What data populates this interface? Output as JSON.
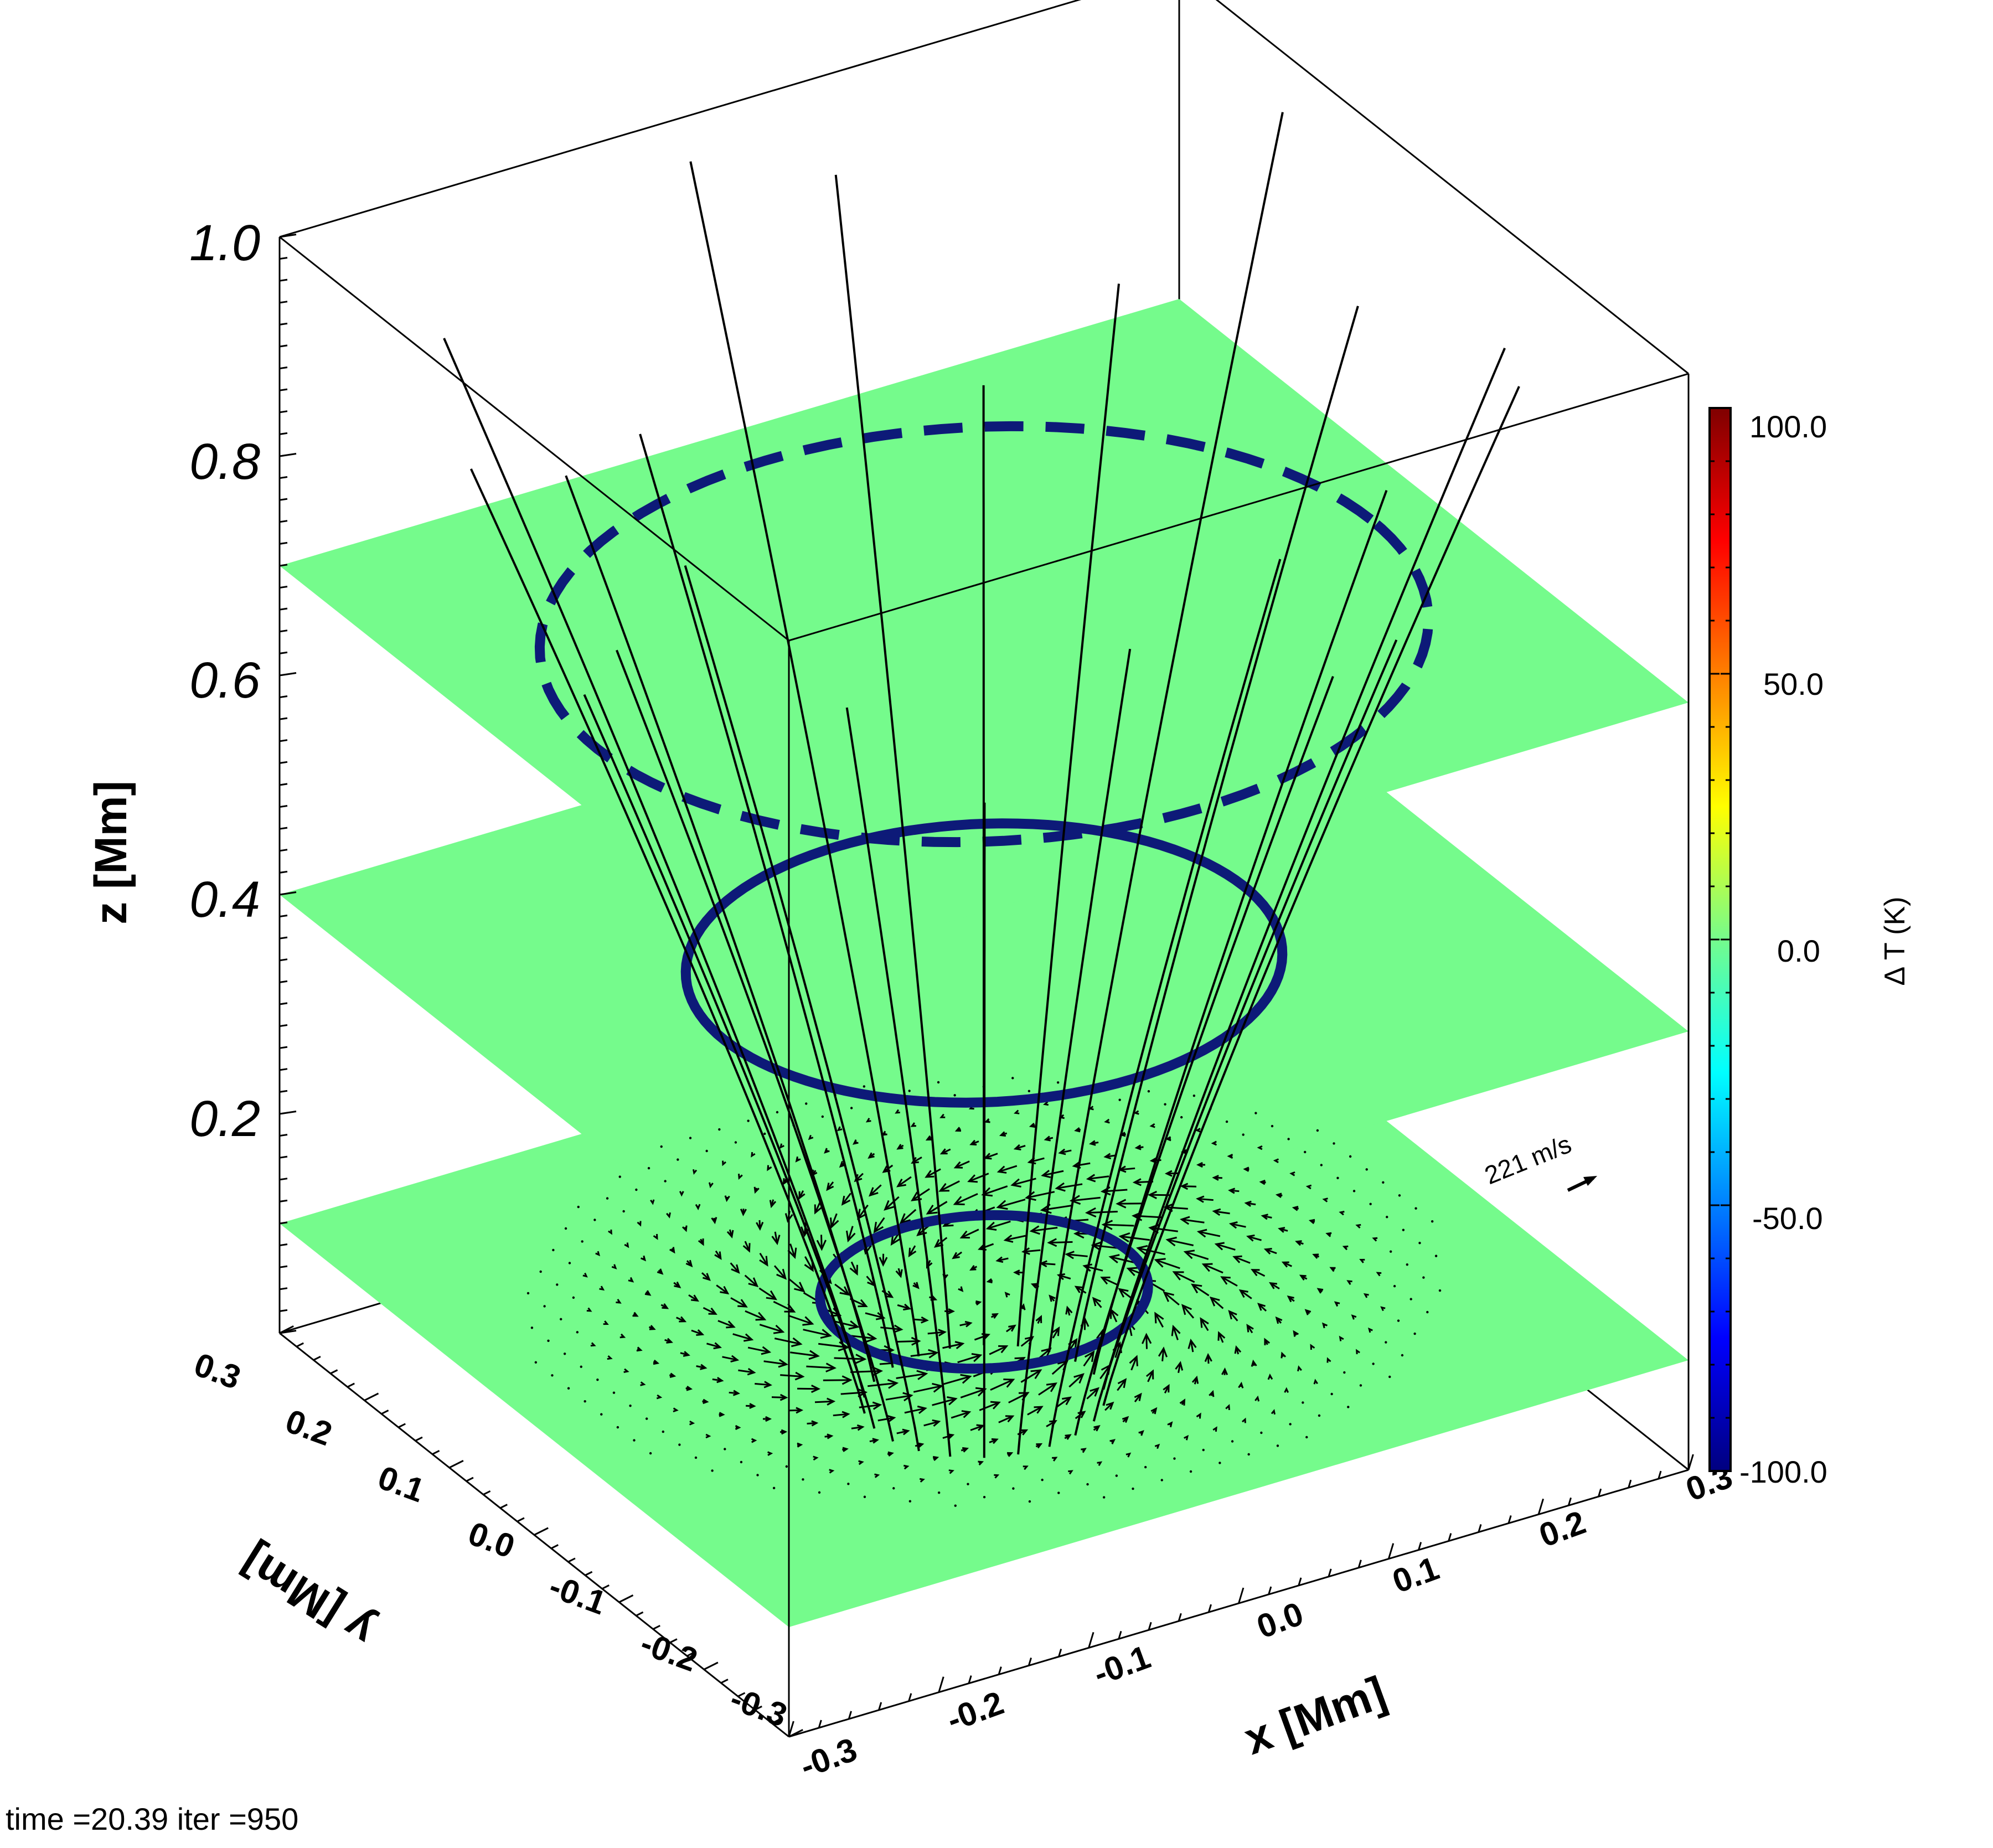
{
  "chart_data": {
    "type": "3d-volume",
    "z_axis": {
      "label": "z [Mm]",
      "range": [
        0.0,
        1.0
      ],
      "ticks": [
        "1.0",
        "0.8",
        "0.6",
        "0.4",
        "0.2"
      ]
    },
    "x_axis": {
      "label": "x [Mm]",
      "range": [
        -0.3,
        0.3
      ],
      "ticks": [
        "-0.3",
        "-0.2",
        "-0.1",
        "0.0",
        "0.1",
        "0.2",
        "0.3"
      ]
    },
    "y_axis": {
      "label": "y [Mm]",
      "range": [
        -0.3,
        0.3
      ],
      "ticks": [
        "0.3",
        "0.2",
        "0.1",
        "0.0",
        "-0.1",
        "-0.2",
        "-0.3"
      ]
    },
    "slice_heights": [
      0.1,
      0.4,
      0.7
    ],
    "slice_color": "#75fb8c",
    "contours": [
      {
        "z": 0.1,
        "style": "solid",
        "color": "#0d1a78"
      },
      {
        "z": 0.4,
        "style": "solid",
        "color": "#0d1a78"
      },
      {
        "z": 0.7,
        "style": "dashed",
        "color": "#0d1a78"
      }
    ],
    "field_lines": 22,
    "velocity_reference": {
      "label": "221 m/s",
      "z": 0.1
    },
    "colorbar": {
      "label": "Δ T (K)",
      "range": [
        -100.0,
        100.0
      ],
      "ticks": [
        "100.0",
        "50.0",
        "0.0",
        "-50.0",
        "-100.0"
      ],
      "colormap": "jet"
    }
  },
  "footer": {
    "status": "time =20.39 iter =950"
  }
}
